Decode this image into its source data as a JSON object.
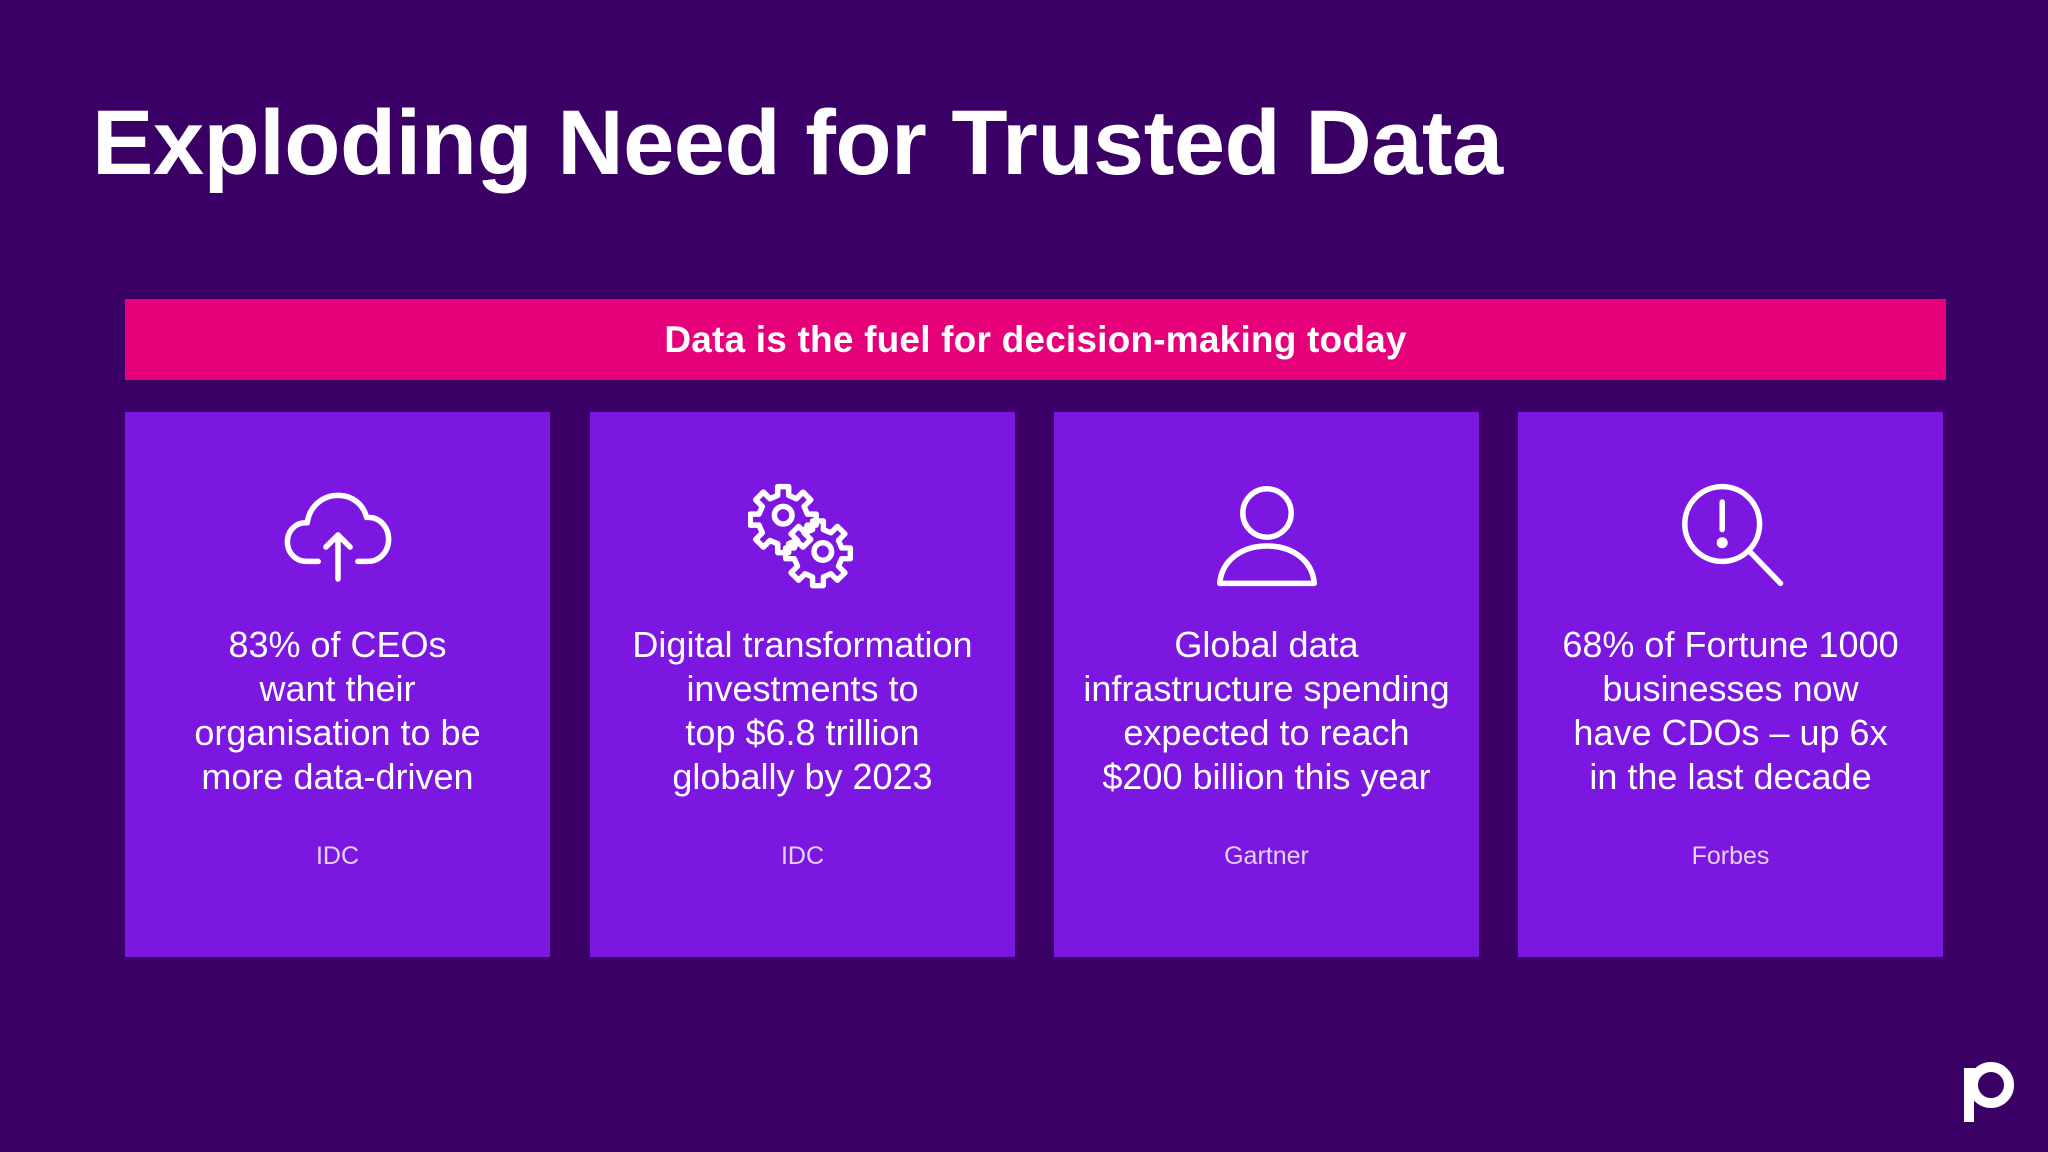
{
  "slide": {
    "title": "Exploding Need for Trusted Data",
    "banner": "Data is the fuel for decision-making today"
  },
  "cards": [
    {
      "icon": "cloud-upload-icon",
      "text": "83% of CEOs\nwant their\norganisation to be\nmore data-driven",
      "source": "IDC"
    },
    {
      "icon": "gears-icon",
      "text": "Digital transformation\ninvestments to\ntop $6.8 trillion\nglobally by 2023",
      "source": "IDC"
    },
    {
      "icon": "user-icon",
      "text": "Global data\ninfrastructure spending\nexpected to reach\n$200 billion this year",
      "source": "Gartner"
    },
    {
      "icon": "search-alert-icon",
      "text": "68% of Fortune 1000\nbusinesses now\nhave CDOs – up 6x\nin the last decade",
      "source": "Forbes"
    }
  ],
  "logo": {
    "icon": "brand-logo-icon"
  },
  "colors": {
    "background": "#3a0066",
    "banner": "#e6007a",
    "card": "#7c17e2",
    "text": "#ffffff"
  }
}
